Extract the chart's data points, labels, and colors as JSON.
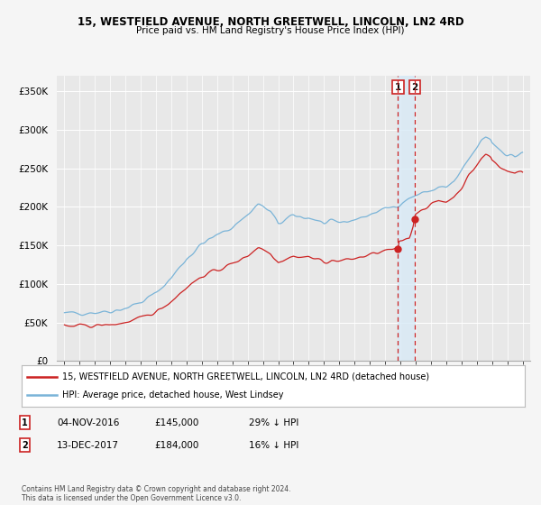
{
  "title1": "15, WESTFIELD AVENUE, NORTH GREETWELL, LINCOLN, LN2 4RD",
  "title2": "Price paid vs. HM Land Registry's House Price Index (HPI)",
  "legend_line1": "15, WESTFIELD AVENUE, NORTH GREETWELL, LINCOLN, LN2 4RD (detached house)",
  "legend_line2": "HPI: Average price, detached house, West Lindsey",
  "footnote": "Contains HM Land Registry data © Crown copyright and database right 2024.\nThis data is licensed under the Open Government Licence v3.0.",
  "sale1_date": "04-NOV-2016",
  "sale1_price": "£145,000",
  "sale1_note": "29% ↓ HPI",
  "sale2_date": "13-DEC-2017",
  "sale2_price": "£184,000",
  "sale2_note": "16% ↓ HPI",
  "sale1_x": 2016.84,
  "sale1_y": 145000,
  "sale2_x": 2017.95,
  "sale2_y": 184000,
  "hpi_color": "#7ab4d8",
  "price_color": "#cc2222",
  "marker_color": "#cc2222",
  "vline_color": "#cc2222",
  "shade_color": "#d8eaf7",
  "ylim": [
    0,
    370000
  ],
  "yticks": [
    0,
    50000,
    100000,
    150000,
    200000,
    250000,
    300000,
    350000
  ],
  "ytick_labels": [
    "£0",
    "£50K",
    "£100K",
    "£150K",
    "£200K",
    "£250K",
    "£300K",
    "£350K"
  ],
  "xlim_start": 1994.5,
  "xlim_end": 2025.5,
  "xticks": [
    1995,
    1996,
    1997,
    1998,
    1999,
    2000,
    2001,
    2002,
    2003,
    2004,
    2005,
    2006,
    2007,
    2008,
    2009,
    2010,
    2011,
    2012,
    2013,
    2014,
    2015,
    2016,
    2017,
    2018,
    2019,
    2020,
    2021,
    2022,
    2023,
    2024,
    2025
  ],
  "chart_bg": "#e8e8e8",
  "fig_bg": "#f5f5f5"
}
